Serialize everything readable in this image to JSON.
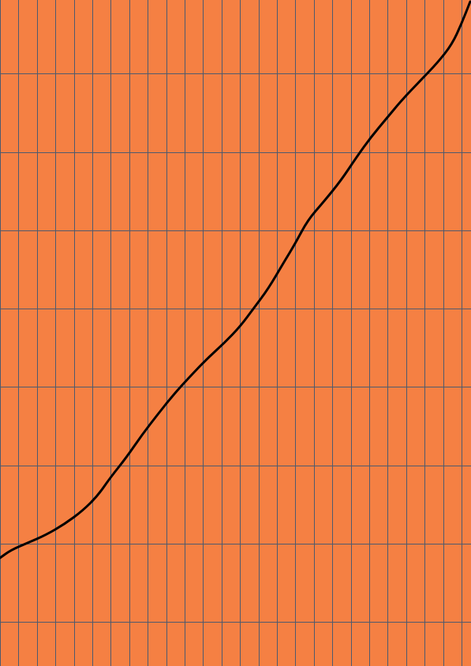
{
  "pattern": {
    "name": "stacked-plank-bond",
    "brick_color": "#f58043",
    "mortar_color": "#4e5a6e"
  },
  "curve": {
    "color": "#000000",
    "description_shape": "s-curve-rising"
  }
}
